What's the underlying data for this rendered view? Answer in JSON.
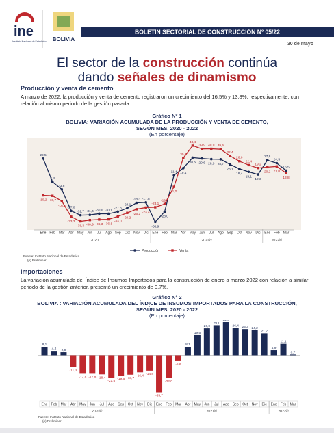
{
  "header": {
    "logo_text": "ine",
    "logo_caption": "Instituto Nacional de Estadística",
    "country_logo": "BOLIVIA",
    "banner": "BOLETÍN SECTORIAL DE CONSTRUCCIÓN Nº 05/22",
    "date": "30 de mayo"
  },
  "title": {
    "line1": [
      "El sector de la ",
      "construcción",
      " continúa"
    ],
    "line2": [
      "dando ",
      "señales de dinamismo"
    ]
  },
  "sections": [
    {
      "heading": "Producción y venta de cemento",
      "text": "A marzo de 2022, la producción y venta de cemento registraron un crecimiento del 16,5% y 13,8%, respectivamente, con relación al mismo periodo de la gestión pasada."
    },
    {
      "heading": "Importaciones",
      "text": "La variación acumulada del Índice de Insumos Importados para la construcción de enero a marzo 2022 con relación a similar periodo de la gestión anterior, presentó un crecimiento de 0,7%."
    }
  ],
  "chart_data": [
    {
      "type": "line",
      "label": "Gráfico Nº 1",
      "title_lines": [
        "BOLIVIA: VARIACIÓN ACUMULADA DE LA PRODUCCIÓN Y VENTA DE CEMENTO,",
        "SEGÚN MES, 2020 - 2022"
      ],
      "subtitle": "(En porcentaje)",
      "categories": [
        "Ene",
        "Feb",
        "Mar",
        "Abr",
        "May",
        "Jun",
        "Jul",
        "Ago",
        "Sep",
        "Oct",
        "Nov",
        "Dic",
        "Ene",
        "Feb",
        "Mar",
        "Abr",
        "May",
        "Jun",
        "Jul",
        "Ago",
        "Sep",
        "Oct",
        "Nov",
        "Dic",
        "Ene",
        "Feb",
        "Mar"
      ],
      "years": [
        {
          "label": "2020"
        },
        {
          "label": "2021",
          "sup": "(p)"
        },
        {
          "label": "2022",
          "sup": "(p)"
        }
      ],
      "ylim": [
        -46,
        50
      ],
      "legend": "bottom",
      "series": [
        {
          "name": "Producción",
          "color": "#1b2a55",
          "values": [
            29.5,
            4.4,
            -3.8,
            -27.0,
            -31.7,
            -31.4,
            -30.0,
            -30.1,
            -27.8,
            -24.1,
            -18.3,
            -17.8,
            -38.9,
            -28.0,
            11.4,
            19.1,
            30.5,
            29.6,
            28.9,
            28.7,
            23.1,
            18.4,
            15.1,
            12.3,
            27.8,
            24.5,
            16.5
          ],
          "value_labels": [
            "29,5",
            "4,4",
            "-3,8",
            "-27,0",
            "-31,7",
            "-31,4",
            "-30,0",
            "-30,1",
            "-27,8",
            "-24,1",
            "-18,3",
            "-17,8",
            "-38,9",
            "-28,0",
            "11,4",
            "19,1",
            "30,5",
            "29,6",
            "28,9",
            "28,7",
            "23,1",
            "18,4",
            "15,1",
            "12,3",
            "27,8",
            "24,5",
            "16,5"
          ]
        },
        {
          "name": "Venta",
          "color": "#c0282d",
          "values": [
            -10.2,
            -10.7,
            -16.4,
            -33.3,
            -38.3,
            -36.9,
            -36.3,
            -36.1,
            -33.0,
            -29.2,
            -25.2,
            -23.4,
            -23.1,
            -19.6,
            -1.0,
            30.0,
            43.4,
            39.9,
            40.0,
            39.5,
            32.4,
            26.6,
            22.4,
            19.2,
            20.2,
            21.0,
            13.8
          ],
          "value_labels": [
            "-10,2",
            "-10,7",
            "-16,4",
            "-33,3",
            "-38,3",
            "-36,9",
            "-36,3",
            "-36,1",
            "-33,0",
            "-29,2",
            "-25,2",
            "-23,4",
            "-23,1",
            "-19,6",
            "-1,0",
            "30,0",
            "43,4",
            "39,9",
            "40,0",
            "39,5",
            "32,4",
            "26,6",
            "22,4",
            "19,2",
            "20,2",
            "21,0",
            "13,8"
          ]
        }
      ],
      "source": "Fuente: Instituto Nacional de Estadística",
      "note": "(p) Preliminar"
    },
    {
      "type": "bar",
      "label": "Gráfico Nº 2",
      "title_lines": [
        "BOLIVIA : VARIACIÓN ACUMULADA DEL ÍNDICE DE INSUMOS IMPORTADOS PARA LA CONSTRUCCIÓN,",
        "SEGÚN MES, 2020 - 2022"
      ],
      "subtitle": "(En porcentaje)",
      "categories": [
        "Ene",
        "Feb",
        "Mar",
        "Abr",
        "May",
        "Jun",
        "Jul",
        "Ago",
        "Sep",
        "Oct",
        "Nov",
        "Dic",
        "Ene",
        "Feb",
        "Mar",
        "Abr",
        "May",
        "Jun",
        "Jul",
        "Ago",
        "Sep",
        "Oct",
        "Nov",
        "Dic",
        "Ene",
        "Feb",
        "Mar"
      ],
      "years": [
        {
          "label": "2020",
          "sup": "(p)"
        },
        {
          "label": "2021",
          "sup": "(p)"
        },
        {
          "label": "2022",
          "sup": "(p)"
        }
      ],
      "ylim": [
        -40,
        34
      ],
      "positive_color": "#1b2a55",
      "negative_color": "#c0282d",
      "values": [
        8.1,
        4.2,
        2.9,
        -11.3,
        -17.8,
        -17.8,
        -18.4,
        -21.5,
        -19.6,
        -18.7,
        -16.4,
        -14.8,
        -35.7,
        -22.0,
        -5.6,
        8.1,
        19.5,
        26.0,
        29.1,
        32.0,
        26.4,
        25.3,
        24.2,
        21.2,
        4.9,
        11.1,
        0.7
      ],
      "value_labels": [
        "8,1",
        "4,2",
        "2,9",
        "-11,3",
        "-17,8",
        "-17,8",
        "-18,4",
        "-21,5",
        "-19,6",
        "-18,7",
        "-16,4",
        "-14,8",
        "-35,7",
        "-22,0",
        "-5,6",
        "8,1",
        "19,5",
        "26,0",
        "29,1",
        "32,0",
        "26,4",
        "25,3",
        "24,2",
        "21,2",
        "4,9",
        "11,1",
        "0,7"
      ],
      "source": "Fuente: Instituto Nacional de Estadística",
      "note": "(p) Preliminar"
    }
  ]
}
